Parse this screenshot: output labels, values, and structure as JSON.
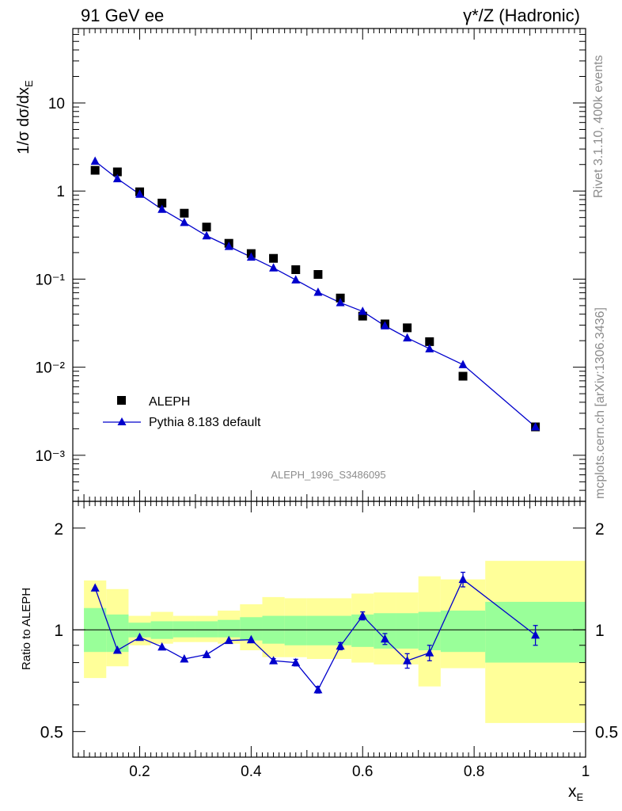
{
  "header": {
    "left_title": "91 GeV ee",
    "right_title": "γ*/Z (Hadronic)"
  },
  "side_text": {
    "rivet": "Rivet 3.1.10,  400k events",
    "mcplots": "mcplots.cern.ch [arXiv:1306.3436]"
  },
  "analysis_label": "ALEPH_1996_S3486095",
  "legend": {
    "data_label": "ALEPH",
    "mc_label": "Pythia 8.183 default"
  },
  "colors": {
    "mc": "#0000cc",
    "data": "#000000",
    "band_inner": "#99ff99",
    "band_outer": "#ffff99"
  },
  "chart_data": [
    {
      "type": "scatter",
      "yscale": "log",
      "ylabel": "1/σ dσ/dx",
      "ylabel_sub": "E",
      "xlim": [
        0.08,
        1.0
      ],
      "ylim": [
        0.0003,
        70
      ],
      "y_tick_labels": [
        "10⁻³",
        "10⁻²",
        "10⁻¹",
        "1",
        "10"
      ],
      "series": [
        {
          "name": "ALEPH",
          "marker": "square",
          "x": [
            0.12,
            0.16,
            0.2,
            0.24,
            0.28,
            0.32,
            0.36,
            0.4,
            0.44,
            0.48,
            0.52,
            0.56,
            0.6,
            0.64,
            0.68,
            0.72,
            0.78,
            0.91
          ],
          "y": [
            1.72,
            1.65,
            0.98,
            0.73,
            0.56,
            0.39,
            0.255,
            0.195,
            0.172,
            0.128,
            0.113,
            0.061,
            0.038,
            0.031,
            0.028,
            0.0195,
            0.0079,
            0.0021
          ]
        },
        {
          "name": "Pythia 8.183 default",
          "marker": "triangle",
          "x": [
            0.12,
            0.16,
            0.2,
            0.24,
            0.28,
            0.32,
            0.36,
            0.4,
            0.44,
            0.48,
            0.52,
            0.56,
            0.6,
            0.64,
            0.68,
            0.72,
            0.78,
            0.91
          ],
          "y": [
            2.18,
            1.38,
            0.92,
            0.62,
            0.44,
            0.31,
            0.235,
            0.178,
            0.134,
            0.098,
            0.071,
            0.054,
            0.043,
            0.0295,
            0.0215,
            0.0162,
            0.0107,
            0.0021
          ]
        }
      ]
    },
    {
      "type": "line",
      "ylabel": "Ratio to ALEPH",
      "xlabel": "x",
      "xlabel_sub": "E",
      "yscale": "log",
      "xlim": [
        0.08,
        1.0
      ],
      "ylim": [
        0.42,
        2.4
      ],
      "x_ticks": [
        0.2,
        0.4,
        0.6,
        0.8,
        1.0
      ],
      "x_tick_labels": [
        "0.2",
        "0.4",
        "0.6",
        "0.8",
        "1"
      ],
      "y_ticks": [
        0.5,
        1,
        2
      ],
      "y_tick_labels": [
        "0.5",
        "1",
        "2"
      ],
      "bands": {
        "edges": [
          0.1,
          0.14,
          0.18,
          0.22,
          0.26,
          0.3,
          0.34,
          0.38,
          0.42,
          0.46,
          0.5,
          0.54,
          0.58,
          0.62,
          0.66,
          0.7,
          0.74,
          0.82,
          1.0
        ],
        "inner_lo": [
          0.86,
          0.86,
          0.95,
          0.94,
          0.95,
          0.95,
          0.95,
          0.93,
          0.91,
          0.9,
          0.9,
          0.9,
          0.89,
          0.88,
          0.88,
          0.87,
          0.86,
          0.8
        ],
        "inner_hi": [
          1.16,
          1.11,
          1.05,
          1.06,
          1.06,
          1.06,
          1.07,
          1.09,
          1.1,
          1.1,
          1.1,
          1.1,
          1.11,
          1.12,
          1.12,
          1.13,
          1.14,
          1.21
        ],
        "outer_lo": [
          0.72,
          0.78,
          0.9,
          0.91,
          0.92,
          0.92,
          0.91,
          0.87,
          0.83,
          0.83,
          0.82,
          0.82,
          0.8,
          0.79,
          0.79,
          0.68,
          0.77,
          0.53
        ],
        "outer_hi": [
          1.4,
          1.32,
          1.1,
          1.13,
          1.1,
          1.1,
          1.14,
          1.19,
          1.25,
          1.24,
          1.24,
          1.24,
          1.28,
          1.29,
          1.29,
          1.44,
          1.41,
          1.6
        ]
      },
      "series": [
        {
          "name": "Pythia 8.183 default / ALEPH",
          "x": [
            0.12,
            0.16,
            0.2,
            0.24,
            0.28,
            0.32,
            0.36,
            0.4,
            0.44,
            0.48,
            0.52,
            0.56,
            0.6,
            0.64,
            0.68,
            0.72,
            0.78,
            0.91
          ],
          "y": [
            1.33,
            0.87,
            0.95,
            0.89,
            0.82,
            0.845,
            0.93,
            0.935,
            0.81,
            0.8,
            0.665,
            0.895,
            1.1,
            0.94,
            0.81,
            0.855,
            1.41,
            0.965
          ],
          "err": [
            0,
            0,
            0,
            0,
            0,
            0,
            0,
            0,
            0.012,
            0.018,
            0.015,
            0.022,
            0.03,
            0.035,
            0.04,
            0.045,
            0.07,
            0.065
          ]
        }
      ]
    }
  ]
}
